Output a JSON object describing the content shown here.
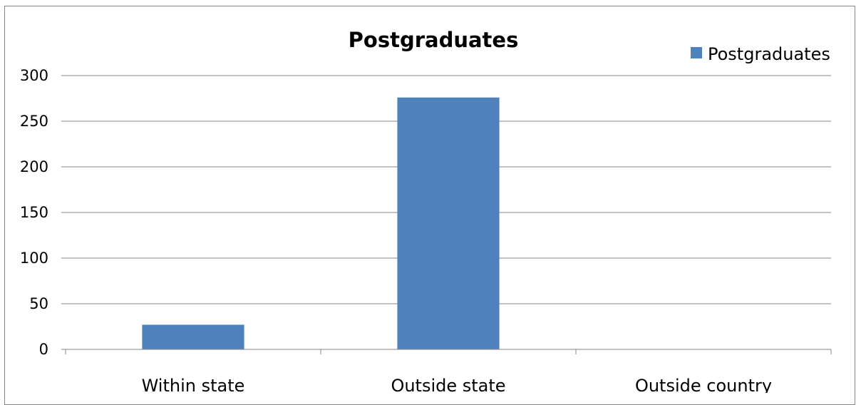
{
  "chart_data": {
    "type": "bar",
    "title": "Postgraduates",
    "categories": [
      "Within state",
      "Outside state",
      "Outside country"
    ],
    "series": [
      {
        "name": "Postgraduates",
        "values": [
          27,
          276,
          0
        ],
        "color": "#4F81BD"
      }
    ],
    "yticks": [
      "0",
      "50",
      "100",
      "150",
      "200",
      "250",
      "300"
    ],
    "ylim": [
      0,
      300
    ],
    "grid": true,
    "legend_position": "top-right",
    "axis_color": "#868686",
    "grid_color": "#868686"
  }
}
